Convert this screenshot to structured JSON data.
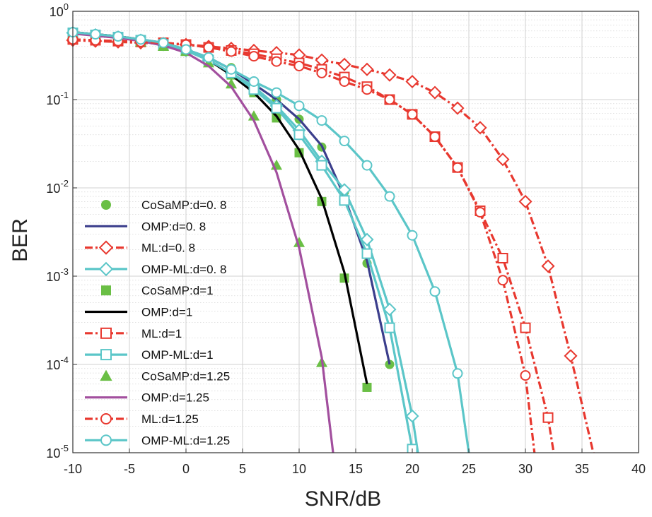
{
  "chart_data": {
    "type": "line",
    "xlabel": "SNR/dB",
    "ylabel": "BER",
    "xlim": [
      -10,
      40
    ],
    "ylim": [
      1e-05,
      1
    ],
    "yscale": "log",
    "grid": true,
    "minor_grid": true,
    "legend_placement": "left",
    "x_ticks": [
      "-10",
      "-5",
      "0",
      "5",
      "10",
      "15",
      "20",
      "25",
      "30",
      "35",
      "40"
    ],
    "y_ticks": [
      {
        "base": "10",
        "exp": "0"
      },
      {
        "base": "10",
        "exp": "-1"
      },
      {
        "base": "10",
        "exp": "-2"
      },
      {
        "base": "10",
        "exp": "-3"
      },
      {
        "base": "10",
        "exp": "-4"
      },
      {
        "base": "10",
        "exp": "-5"
      }
    ],
    "series": [
      {
        "name": "CoSaMP:d=0. 8",
        "color": "#6abf45",
        "line": "none",
        "marker": "circle",
        "marker_fill": "filled",
        "x": [
          -10,
          -8,
          -6,
          -4,
          -2,
          0,
          2,
          4,
          6,
          8,
          10,
          12,
          14,
          16,
          18
        ],
        "y": [
          0.56,
          0.53,
          0.5,
          0.47,
          0.43,
          0.37,
          0.3,
          0.23,
          0.16,
          0.1,
          0.06,
          0.029,
          0.009,
          0.0014,
          0.0001
        ]
      },
      {
        "name": "OMP:d=0. 8",
        "color": "#3b3e8c",
        "line": "solid",
        "marker": "none",
        "x": [
          -10,
          -8,
          -6,
          -4,
          -2,
          0,
          2,
          4,
          6,
          8,
          10,
          12,
          14,
          16,
          18
        ],
        "y": [
          0.58,
          0.55,
          0.52,
          0.48,
          0.44,
          0.37,
          0.3,
          0.22,
          0.15,
          0.1,
          0.06,
          0.03,
          0.008,
          0.0015,
          0.0001
        ]
      },
      {
        "name": "ML:d=0. 8",
        "color": "#e8382f",
        "line": "dashdot",
        "marker": "diamond",
        "marker_fill": "open",
        "x": [
          -10,
          -8,
          -6,
          -4,
          -2,
          0,
          2,
          4,
          6,
          8,
          10,
          12,
          14,
          16,
          18,
          20,
          22,
          24,
          26,
          28,
          30,
          32,
          34,
          36
        ],
        "y": [
          0.47,
          0.46,
          0.45,
          0.44,
          0.43,
          0.42,
          0.4,
          0.38,
          0.36,
          0.34,
          0.32,
          0.28,
          0.25,
          0.22,
          0.19,
          0.16,
          0.12,
          0.08,
          0.048,
          0.021,
          0.007,
          0.0013,
          0.000125,
          1e-05
        ]
      },
      {
        "name": "OMP-ML:d=0. 8",
        "color": "#5bc6c8",
        "line": "solid",
        "marker": "diamond",
        "marker_fill": "open",
        "x": [
          -10,
          -8,
          -6,
          -4,
          -2,
          0,
          2,
          4,
          6,
          8,
          10,
          12,
          14,
          16,
          18,
          20,
          20.5
        ],
        "y": [
          0.57,
          0.54,
          0.51,
          0.47,
          0.42,
          0.36,
          0.28,
          0.2,
          0.14,
          0.085,
          0.045,
          0.02,
          0.0095,
          0.0026,
          0.00042,
          2.6e-05,
          1e-05
        ]
      },
      {
        "name": "CoSaMP:d=1",
        "color": "#6abf45",
        "line": "none",
        "marker": "square",
        "marker_fill": "filled",
        "x": [
          -10,
          -8,
          -6,
          -4,
          -2,
          0,
          2,
          4,
          6,
          8,
          10,
          12,
          14,
          16
        ],
        "y": [
          0.57,
          0.54,
          0.51,
          0.47,
          0.42,
          0.36,
          0.28,
          0.19,
          0.12,
          0.062,
          0.025,
          0.007,
          0.00095,
          5.5e-05
        ]
      },
      {
        "name": "OMP:d=1",
        "color": "#000000",
        "line": "solid",
        "marker": "none",
        "x": [
          -10,
          -8,
          -6,
          -4,
          -2,
          0,
          2,
          4,
          6,
          8,
          10,
          12,
          14,
          16
        ],
        "y": [
          0.58,
          0.55,
          0.52,
          0.48,
          0.43,
          0.37,
          0.28,
          0.19,
          0.12,
          0.065,
          0.027,
          0.0075,
          0.0011,
          6e-05
        ]
      },
      {
        "name": "ML:d=1",
        "color": "#e8382f",
        "line": "dashdot",
        "marker": "square",
        "marker_fill": "open",
        "x": [
          -10,
          -8,
          -6,
          -4,
          -2,
          0,
          2,
          4,
          6,
          8,
          10,
          12,
          14,
          16,
          18,
          20,
          22,
          24,
          26,
          28,
          30,
          32,
          32.5
        ],
        "y": [
          0.48,
          0.47,
          0.46,
          0.45,
          0.44,
          0.42,
          0.39,
          0.36,
          0.33,
          0.29,
          0.26,
          0.22,
          0.18,
          0.14,
          0.1,
          0.068,
          0.038,
          0.017,
          0.0055,
          0.0016,
          0.00026,
          2.5e-05,
          1e-05
        ]
      },
      {
        "name": "OMP-ML:d=1",
        "color": "#5bc6c8",
        "line": "solid",
        "marker": "square",
        "marker_fill": "open",
        "x": [
          -10,
          -8,
          -6,
          -4,
          -2,
          0,
          2,
          4,
          6,
          8,
          10,
          12,
          14,
          16,
          18,
          20,
          20.2
        ],
        "y": [
          0.57,
          0.54,
          0.51,
          0.47,
          0.42,
          0.36,
          0.28,
          0.2,
          0.13,
          0.08,
          0.04,
          0.018,
          0.0072,
          0.0018,
          0.00026,
          1.1e-05,
          1e-05
        ]
      },
      {
        "name": "CoSaMP:d=1.25",
        "color": "#6abf45",
        "line": "none",
        "marker": "triangle",
        "marker_fill": "filled",
        "x": [
          -10,
          -8,
          -6,
          -4,
          -2,
          0,
          2,
          4,
          6,
          8,
          10,
          12
        ],
        "y": [
          0.55,
          0.52,
          0.49,
          0.45,
          0.4,
          0.35,
          0.26,
          0.15,
          0.065,
          0.018,
          0.0024,
          0.000105
        ]
      },
      {
        "name": "OMP:d=1.25",
        "color": "#a24f9e",
        "line": "solid",
        "marker": "none",
        "x": [
          -10,
          -8,
          -6,
          -4,
          -2,
          0,
          2,
          4,
          6,
          8,
          10,
          12,
          13
        ],
        "y": [
          0.56,
          0.53,
          0.5,
          0.46,
          0.41,
          0.34,
          0.24,
          0.14,
          0.058,
          0.015,
          0.0021,
          0.00012,
          1e-05
        ]
      },
      {
        "name": "ML:d=1.25",
        "color": "#e8382f",
        "line": "dashdot",
        "marker": "circle",
        "marker_fill": "open",
        "x": [
          -10,
          -8,
          -6,
          -4,
          -2,
          0,
          2,
          4,
          6,
          8,
          10,
          12,
          14,
          16,
          18,
          20,
          22,
          24,
          26,
          28,
          30,
          30.8
        ],
        "y": [
          0.48,
          0.47,
          0.46,
          0.45,
          0.44,
          0.42,
          0.39,
          0.35,
          0.31,
          0.27,
          0.24,
          0.2,
          0.16,
          0.13,
          0.1,
          0.068,
          0.038,
          0.017,
          0.0053,
          0.0009,
          7.5e-05,
          1e-05
        ]
      },
      {
        "name": "OMP-ML:d=1.25",
        "color": "#5bc6c8",
        "line": "solid",
        "marker": "circle",
        "marker_fill": "open",
        "x": [
          -10,
          -8,
          -6,
          -4,
          -2,
          0,
          2,
          4,
          6,
          8,
          10,
          12,
          14,
          16,
          18,
          20,
          22,
          24,
          25
        ],
        "y": [
          0.58,
          0.55,
          0.52,
          0.48,
          0.44,
          0.37,
          0.3,
          0.22,
          0.16,
          0.12,
          0.085,
          0.058,
          0.034,
          0.018,
          0.008,
          0.0029,
          0.00067,
          7.9e-05,
          1e-05
        ]
      }
    ]
  }
}
